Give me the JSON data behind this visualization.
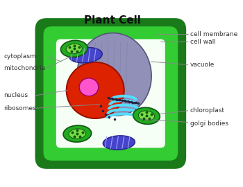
{
  "title": "Plant Cell",
  "title_fontsize": 11,
  "bg_color": "#ffffff",
  "cell_wall_color": "#1a7a1a",
  "cell_wall_inner_color": "#33cc33",
  "cytoplasm_color": "#f5fff5",
  "vacuole_color": "#9090b8",
  "vacuole_edge": "#555577",
  "nucleus_color": "#dd2200",
  "nucleus_edge": "#991100",
  "nucleolus_color": "#ff55cc",
  "nucleolus_edge": "#bb0077",
  "mitochondria_color": "#4444cc",
  "mitochondria_edge": "#222288",
  "chloroplast_outer": "#22aa22",
  "chloroplast_inner": "#77dd44",
  "golgi_color": "#55ddff",
  "golgi_edge": "#2299bb",
  "ribosome_color": "#222255",
  "label_color": "#333333",
  "line_color": "#888888",
  "labels": {
    "cell_membrane": "cell membrane",
    "cell_wall": "cell wall",
    "cytoplasm": "cytoplasm",
    "vacuole": "vacuole",
    "mitochondria": "mitochondria",
    "nucleus": "nucleus",
    "ribosomes": "ribosomes",
    "chloroplast": "chloroplast",
    "golgi_bodies": "golgi bodies"
  },
  "label_fontsize": 6.5
}
